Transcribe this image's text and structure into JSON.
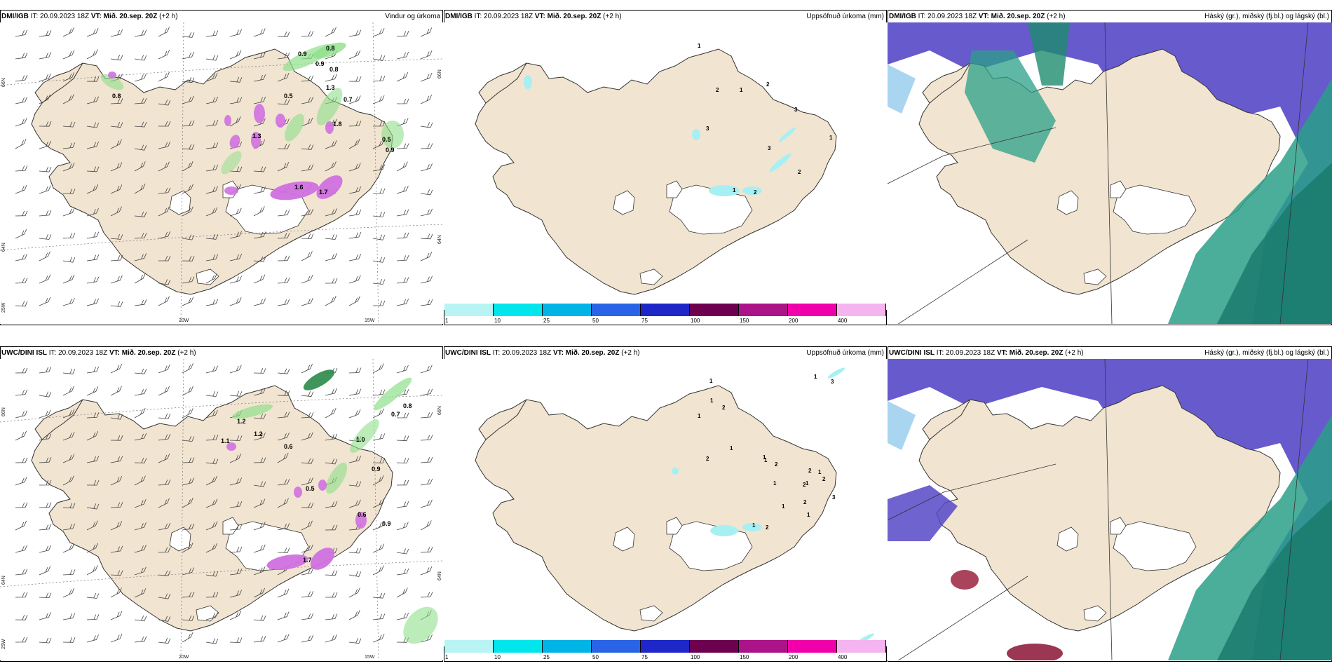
{
  "panels": [
    {
      "key": "p1",
      "model": "DMI/IGB",
      "it": "IT: 20.09.2023 18Z",
      "vt_label": "VT:",
      "vt_value": "Mið. 20.sep. 20Z",
      "lead": "(+2 h)",
      "title": "Vindur og úrkoma"
    },
    {
      "key": "p2",
      "model": "DMI/IGB",
      "it": "IT: 20.09.2023 18Z",
      "vt_label": "VT:",
      "vt_value": "Mið. 20.sep. 20Z",
      "lead": "(+2 h)",
      "title": "Uppsöfnuð úrkoma (mm)"
    },
    {
      "key": "p3",
      "model": "DMI/IGB",
      "it": "IT: 20.09.2023 18Z",
      "vt_label": "VT:",
      "vt_value": "Mið. 20.sep. 20Z",
      "lead": "(+2 h)",
      "title": "Háský (gr.), miðský (fj.bl.) og lágský (bl.)"
    },
    {
      "key": "p4",
      "model": "UWC/DINI ISL",
      "it": "IT: 20.09.2023 18Z",
      "vt_label": "VT:",
      "vt_value": "Mið. 20.sep. 20Z",
      "lead": "(+2 h)",
      "title": ""
    },
    {
      "key": "p5",
      "model": "UWC/DINI ISL",
      "it": "IT: 20.09.2023 18Z",
      "vt_label": "VT:",
      "vt_value": "Mið. 20.sep. 20Z",
      "lead": "(+2 h)",
      "title": "Uppsöfnuð úrkoma (mm)"
    },
    {
      "key": "p6",
      "model": "UWC/DINI ISL",
      "it": "IT: 20.09.2023 18Z",
      "vt_label": "VT:",
      "vt_value": "Mið. 20.sep. 20Z",
      "lead": "(+2 h)",
      "title": "Háský (gr.), miðský (fj.bl.) og lágský (bl.)"
    }
  ],
  "axes": {
    "lat_top": "66N",
    "lat_mid": "64N",
    "lat_bot": "25W",
    "lon_left": "20W",
    "lon_right": "15W"
  },
  "colorbar": {
    "ticks": [
      "1",
      "10",
      "25",
      "50",
      "75",
      "100",
      "150",
      "200",
      "400"
    ],
    "colors": [
      "#b8f4f4",
      "#00e6ec",
      "#00b4e6",
      "#2a64e6",
      "#1e28c8",
      "#6e0050",
      "#aa1488",
      "#f000aa",
      "#f4b4f0"
    ]
  },
  "wind_precip_labels_top": [
    "0.9",
    "0.8",
    "0.9",
    "0.8",
    "0.8",
    "0.5",
    "1.3",
    "0.7",
    "1.8",
    "0.5",
    "0.9",
    "1.3",
    "1.6",
    "1.7"
  ],
  "wind_precip_labels_bottom": [
    "1.2",
    "1.2",
    "0.6",
    "0.8",
    "0.7",
    "1.0",
    "1.1",
    "0.5",
    "0.9",
    "0.9",
    "0.6",
    "1.7"
  ],
  "accum_labels_top": [
    "1",
    "2",
    "1",
    "2",
    "3",
    "3",
    "1",
    "3",
    "1",
    "2",
    "2"
  ],
  "accum_labels_bottom": [
    "1",
    "1",
    "2",
    "1",
    "1",
    "2",
    "1",
    "1",
    "2",
    "2",
    "1",
    "2",
    "1",
    "2",
    "3",
    "1",
    "2",
    "1",
    "1",
    "1",
    "2",
    "3",
    "1",
    "1"
  ],
  "colors": {
    "land": "#f1e4d0",
    "ocean": "#ffffff",
    "snow": "#ffffff",
    "green": "#8ee08a",
    "magenta": "#d070e0",
    "high_cloud": "#5648c8",
    "mid_cloud": "#2aa088",
    "low_cloud": "#1e8c6e",
    "light_cloud": "#a0d0f0"
  }
}
